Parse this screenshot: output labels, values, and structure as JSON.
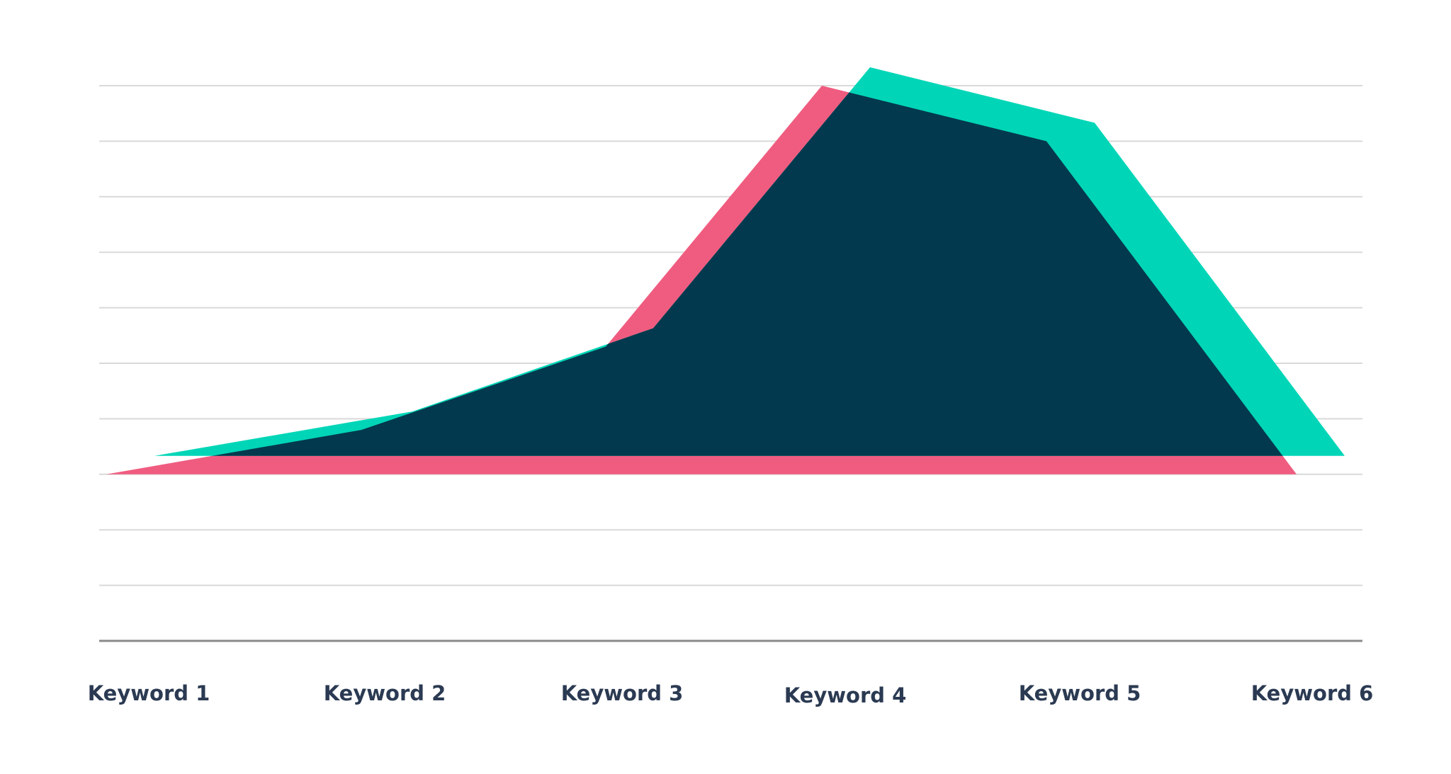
{
  "colors": {
    "background": "#ffffff",
    "series_pink": "#f05c80",
    "series_teal": "#00d6b7",
    "overlap": "#03394e",
    "grid": "#d9d9d9",
    "axis": "#8a8a8a",
    "label": "#2b3a52"
  },
  "chart_data": {
    "type": "area",
    "title": "",
    "xlabel": "",
    "ylabel": "",
    "categories": [
      "Keyword 1",
      "Keyword 2",
      "Keyword 3",
      "Keyword 4",
      "Keyword 5",
      "Keyword 6"
    ],
    "ylim": [
      -3,
      7
    ],
    "grid": true,
    "y_ticks_shown": false,
    "legend": "none",
    "series": [
      {
        "values": [
          0,
          0.8,
          2.3,
          7.0,
          6.0,
          0
        ]
      },
      {
        "values": [
          0,
          0.8,
          2.3,
          7.0,
          6.0,
          0
        ]
      }
    ]
  }
}
